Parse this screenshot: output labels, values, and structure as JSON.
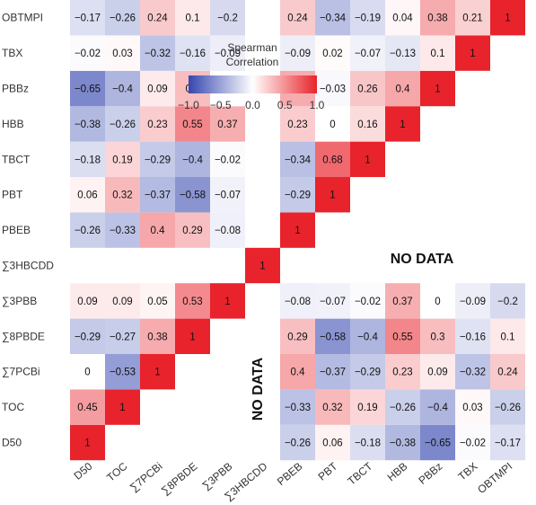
{
  "chart_data": {
    "type": "heatmap",
    "variables": [
      "D50",
      "TOC",
      "∑7PCBi",
      "∑8PBDE",
      "∑3PBB",
      "∑3HBCDD",
      "PBEB",
      "PBT",
      "TBCT",
      "HBB",
      "PBBz",
      "TBX",
      "OBTMPI"
    ],
    "row_labels": [
      "OBTMPI",
      "TBX",
      "PBBz",
      "HBB",
      "TBCT",
      "PBT",
      "PBEB",
      "∑3HBCDD",
      "∑3PBB",
      "∑8PBDE",
      "∑7PCBi",
      "TOC",
      "D50"
    ],
    "x_tick_labels": [
      "D50",
      "TOC",
      "∑7PCBi",
      "∑8PBDE",
      "∑3PBB",
      "∑3HBCDD",
      "PBEB",
      "PBT",
      "TBCT",
      "HBB",
      "PBBz",
      "TBX",
      "OBTMPI"
    ],
    "values": [
      [
        1,
        0.45,
        0,
        -0.29,
        0.09,
        null,
        -0.26,
        0.06,
        -0.18,
        -0.38,
        -0.65,
        -0.02,
        -0.17
      ],
      [
        0.45,
        1,
        -0.53,
        -0.27,
        0.09,
        null,
        -0.33,
        0.32,
        0.19,
        -0.26,
        -0.4,
        0.03,
        -0.26
      ],
      [
        0,
        -0.53,
        1,
        0.38,
        0.05,
        null,
        0.4,
        -0.37,
        -0.29,
        0.23,
        0.09,
        -0.32,
        0.24
      ],
      [
        -0.29,
        -0.27,
        0.38,
        1,
        0.53,
        null,
        0.29,
        -0.58,
        -0.4,
        0.55,
        0.3,
        -0.16,
        0.1
      ],
      [
        0.09,
        0.09,
        0.05,
        0.53,
        1,
        null,
        -0.08,
        -0.07,
        -0.02,
        0.37,
        0,
        -0.09,
        -0.2
      ],
      [
        null,
        null,
        null,
        null,
        null,
        1,
        null,
        null,
        null,
        null,
        null,
        null,
        null
      ],
      [
        -0.26,
        -0.33,
        0.4,
        0.29,
        -0.08,
        null,
        1,
        -0.29,
        -0.34,
        0.23,
        0.38,
        -0.09,
        0.24
      ],
      [
        0.06,
        0.32,
        -0.37,
        -0.58,
        -0.07,
        null,
        -0.29,
        1,
        0.68,
        0,
        -0.03,
        0.02,
        -0.34
      ],
      [
        -0.18,
        0.19,
        -0.29,
        -0.4,
        -0.02,
        null,
        -0.34,
        0.68,
        1,
        0.16,
        0.26,
        -0.07,
        -0.19
      ],
      [
        -0.38,
        -0.26,
        0.23,
        0.55,
        0.37,
        null,
        0.23,
        0,
        0.16,
        1,
        0.4,
        -0.13,
        0.04
      ],
      [
        -0.65,
        -0.4,
        0.09,
        0.3,
        0,
        null,
        0.38,
        -0.03,
        0.26,
        0.4,
        1,
        0.1,
        0.38
      ],
      [
        -0.02,
        0.03,
        -0.32,
        -0.16,
        -0.09,
        null,
        -0.09,
        0.02,
        -0.07,
        -0.13,
        0.1,
        1,
        0.21
      ],
      [
        -0.17,
        -0.26,
        0.24,
        0.1,
        -0.2,
        null,
        0.24,
        -0.34,
        -0.19,
        0.04,
        0.38,
        0.21,
        1
      ]
    ],
    "no_data_text": "NO DATA",
    "legend": {
      "title_line1": "Spearman",
      "title_line2": "Correlation",
      "ticks": [
        "−1.0",
        "−0.5",
        "0.0",
        "0.5",
        "1.0"
      ],
      "range": [
        -1,
        1
      ],
      "colors": {
        "low": "#3547b0",
        "mid": "#ffffff",
        "high": "#e8232b"
      }
    }
  }
}
